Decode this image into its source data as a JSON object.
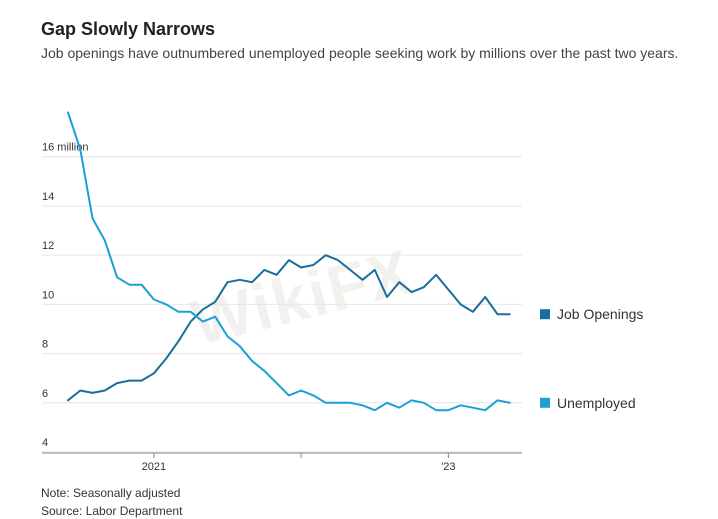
{
  "header": {
    "title": "Gap Slowly Narrows",
    "subtitle": "Job openings have outnumbered unemployed people seeking work by millions over the past two years."
  },
  "watermark": "WikiFX",
  "footer": {
    "note": "Note: Seasonally adjusted",
    "source": "Source: Labor Department"
  },
  "colors": {
    "job_openings": "#1a6e9e",
    "unemployed": "#1aa0d6",
    "grid": "#e6e6e6",
    "axis": "#888888"
  },
  "chart_data": {
    "type": "line",
    "title": "Gap Slowly Narrows",
    "ylabel": "",
    "ylim": [
      4,
      17.9
    ],
    "y_ticks": [
      {
        "value": 4,
        "label": "4"
      },
      {
        "value": 6,
        "label": "6"
      },
      {
        "value": 8,
        "label": "8"
      },
      {
        "value": 10,
        "label": "10"
      },
      {
        "value": 12,
        "label": "12"
      },
      {
        "value": 14,
        "label": "14"
      },
      {
        "value": 16,
        "label": "16 million"
      }
    ],
    "x_index_range": [
      0,
      37
    ],
    "x_ticks": [
      {
        "index": 7,
        "label": "2021"
      },
      {
        "index": 19,
        "label": ""
      },
      {
        "index": 31,
        "label": "'23"
      }
    ],
    "series": [
      {
        "name": "Job Openings",
        "values": [
          6.1,
          6.5,
          6.4,
          6.5,
          6.8,
          6.9,
          6.9,
          7.2,
          7.8,
          8.5,
          9.3,
          9.8,
          10.1,
          10.9,
          11.0,
          10.9,
          11.4,
          11.2,
          11.8,
          11.5,
          11.6,
          12.0,
          11.8,
          11.4,
          11.0,
          11.4,
          10.3,
          10.9,
          10.5,
          10.7,
          11.2,
          10.6,
          10.0,
          9.7,
          10.3,
          9.6,
          9.6
        ]
      },
      {
        "name": "Unemployed",
        "values": [
          17.8,
          16.3,
          13.5,
          12.6,
          11.1,
          10.8,
          10.8,
          10.2,
          10.0,
          9.7,
          9.7,
          9.3,
          9.5,
          8.7,
          8.3,
          7.7,
          7.3,
          6.8,
          6.3,
          6.5,
          6.3,
          6.0,
          6.0,
          6.0,
          5.9,
          5.7,
          6.0,
          5.8,
          6.1,
          6.0,
          5.7,
          5.7,
          5.9,
          5.8,
          5.7,
          6.1,
          6.0
        ]
      }
    ],
    "legend": [
      {
        "name": "Job Openings",
        "position": "right"
      },
      {
        "name": "Unemployed",
        "position": "right"
      }
    ],
    "notes": [
      "Note: Seasonally adjusted",
      "Source: Labor Department"
    ]
  }
}
